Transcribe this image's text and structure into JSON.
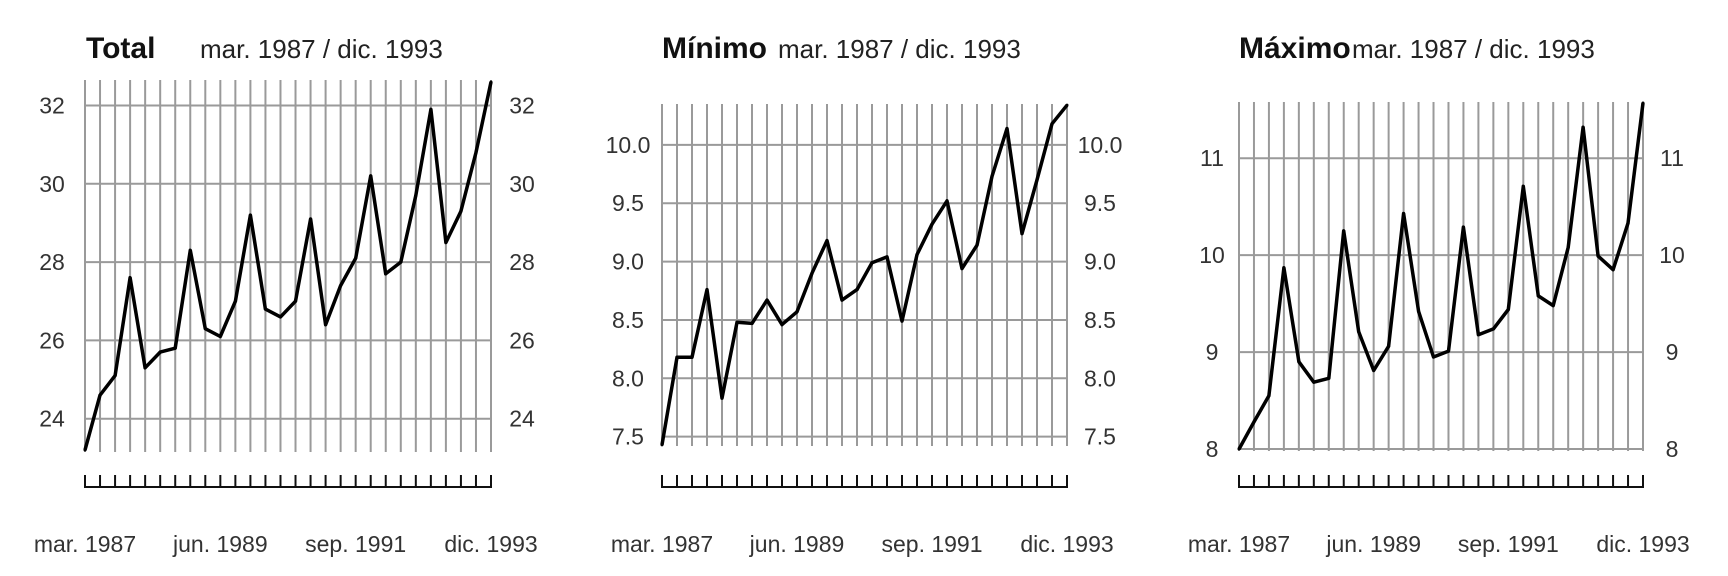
{
  "colors": {
    "grid": "#9a9a9a",
    "line": "#000000",
    "ticks": "#111111"
  },
  "chart_data": [
    {
      "type": "line",
      "title": "Total",
      "subtitle": "mar. 1987 / dic. 1993",
      "x": [
        "mar. 1987",
        "jun. 1987",
        "sep. 1987",
        "dic. 1987",
        "mar. 1988",
        "jun. 1988",
        "sep. 1988",
        "dic. 1988",
        "mar. 1989",
        "jun. 1989",
        "sep. 1989",
        "dic. 1989",
        "mar. 1990",
        "jun. 1990",
        "sep. 1990",
        "dic. 1990",
        "mar. 1991",
        "jun. 1991",
        "sep. 1991",
        "dic. 1991",
        "mar. 1992",
        "jun. 1992",
        "sep. 1992",
        "dic. 1992",
        "mar. 1993",
        "jun. 1993",
        "sep. 1993",
        "dic. 1993"
      ],
      "x_tick_labels": [
        "mar. 1987",
        "jun. 1989",
        "sep. 1991",
        "dic. 1993"
      ],
      "y_ticks": [
        24,
        26,
        28,
        30,
        32
      ],
      "ylim": [
        23.15,
        32.65
      ],
      "grid": true,
      "series": [
        {
          "values": [
            23.2,
            24.6,
            25.1,
            27.6,
            25.3,
            25.7,
            25.8,
            28.3,
            26.3,
            26.1,
            27.0,
            29.2,
            26.8,
            26.6,
            27.0,
            29.1,
            26.4,
            27.4,
            28.1,
            30.2,
            27.7,
            28.0,
            29.7,
            31.9,
            28.5,
            29.3,
            30.8,
            32.6
          ]
        }
      ]
    },
    {
      "type": "line",
      "title": "Mínimo",
      "subtitle": "mar. 1987 / dic. 1993",
      "x": [
        "mar. 1987",
        "jun. 1987",
        "sep. 1987",
        "dic. 1987",
        "mar. 1988",
        "jun. 1988",
        "sep. 1988",
        "dic. 1988",
        "mar. 1989",
        "jun. 1989",
        "sep. 1989",
        "dic. 1989",
        "mar. 1990",
        "jun. 1990",
        "sep. 1990",
        "dic. 1990",
        "mar. 1991",
        "jun. 1991",
        "sep. 1991",
        "dic. 1991",
        "mar. 1992",
        "jun. 1992",
        "sep. 1992",
        "dic. 1992",
        "mar. 1993",
        "jun. 1993",
        "sep. 1993",
        "dic. 1993"
      ],
      "x_tick_labels": [
        "mar. 1987",
        "jun. 1989",
        "sep. 1991",
        "dic. 1993"
      ],
      "y_ticks": [
        7.5,
        8.0,
        8.5,
        9.0,
        9.5,
        10.0
      ],
      "ylim": [
        7.42,
        10.35
      ],
      "grid": true,
      "series": [
        {
          "values": [
            7.43,
            8.18,
            8.18,
            8.76,
            7.83,
            8.48,
            8.47,
            8.67,
            8.46,
            8.57,
            8.9,
            9.18,
            8.67,
            8.76,
            8.99,
            9.04,
            8.49,
            9.06,
            9.32,
            9.52,
            8.94,
            9.14,
            9.73,
            10.14,
            9.24,
            9.7,
            10.18,
            10.34
          ]
        }
      ]
    },
    {
      "type": "line",
      "title": "Máximo",
      "subtitle": "mar. 1987 / dic. 1993",
      "x": [
        "mar. 1987",
        "jun. 1987",
        "sep. 1987",
        "dic. 1987",
        "mar. 1988",
        "jun. 1988",
        "sep. 1988",
        "dic. 1988",
        "mar. 1989",
        "jun. 1989",
        "sep. 1989",
        "dic. 1989",
        "mar. 1990",
        "jun. 1990",
        "sep. 1990",
        "dic. 1990",
        "mar. 1991",
        "jun. 1991",
        "sep. 1991",
        "dic. 1991",
        "mar. 1992",
        "jun. 1992",
        "sep. 1992",
        "dic. 1992",
        "mar. 1993",
        "jun. 1993",
        "sep. 1993",
        "dic. 1993"
      ],
      "x_tick_labels": [
        "mar. 1987",
        "jun. 1989",
        "sep. 1991",
        "dic. 1993"
      ],
      "y_ticks": [
        8,
        9,
        10,
        11
      ],
      "ylim": [
        7.98,
        11.58
      ],
      "grid": true,
      "series": [
        {
          "values": [
            8.0,
            8.28,
            8.55,
            9.87,
            8.9,
            8.69,
            8.73,
            10.25,
            9.21,
            8.81,
            9.06,
            10.43,
            9.42,
            8.95,
            9.01,
            10.29,
            9.18,
            9.24,
            9.44,
            10.71,
            9.58,
            9.48,
            10.08,
            11.32,
            9.99,
            9.85,
            10.33,
            11.57
          ]
        }
      ]
    }
  ]
}
